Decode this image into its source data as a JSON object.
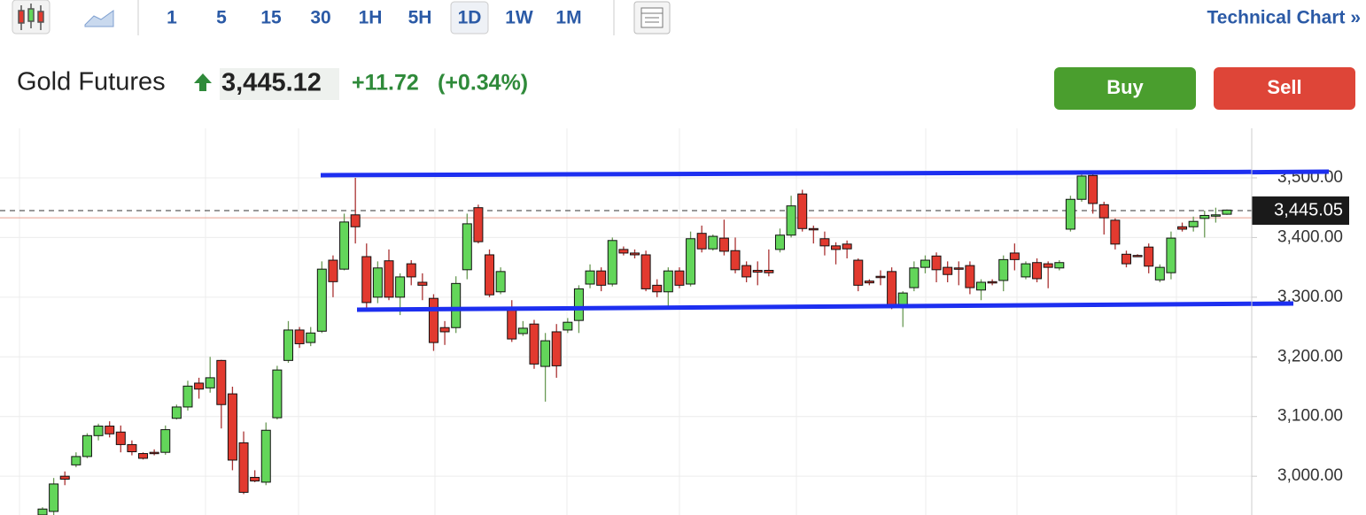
{
  "toolbar": {
    "intervals": [
      "1",
      "5",
      "15",
      "30",
      "1H",
      "5H",
      "1D",
      "1W",
      "1M"
    ],
    "selected_interval": "1D",
    "link": "Technical Chart »"
  },
  "quote": {
    "name": "Gold Futures",
    "price": "3,445.12",
    "change": "+11.72",
    "change_pct": "(+0.34%)"
  },
  "buttons": {
    "buy": "Buy",
    "sell": "Sell"
  },
  "chart_data": {
    "type": "candlestick",
    "up_color": "#63d65a",
    "down_color": "#e23a2f",
    "ylim": [
      2935,
      3583
    ],
    "yticks": [
      {
        "value": 3000,
        "label": "3,000.00"
      },
      {
        "value": 3100,
        "label": "3,100.00"
      },
      {
        "value": 3200,
        "label": "3,200.00"
      },
      {
        "value": 3300,
        "label": "3,300.00"
      },
      {
        "value": 3400,
        "label": "3,400.00"
      },
      {
        "value": 3500,
        "label": "3,500.00"
      }
    ],
    "grid": true,
    "last_price": {
      "value": 3445.05,
      "label": "3,445.05"
    },
    "previous_close": 3433,
    "candles": [
      [
        2935,
        2948,
        2930,
        2945
      ],
      [
        2941,
        2997,
        2935,
        2987
      ],
      [
        3000,
        3008,
        2985,
        2995
      ],
      [
        3019,
        3040,
        3015,
        3033
      ],
      [
        3033,
        3072,
        3030,
        3068
      ],
      [
        3068,
        3088,
        3060,
        3084
      ],
      [
        3084,
        3092,
        3065,
        3071
      ],
      [
        3074,
        3085,
        3040,
        3053
      ],
      [
        3053,
        3060,
        3035,
        3041
      ],
      [
        3038,
        3040,
        3028,
        3030
      ],
      [
        3040,
        3045,
        3035,
        3039
      ],
      [
        3040,
        3085,
        3036,
        3078
      ],
      [
        3097,
        3120,
        3095,
        3116
      ],
      [
        3116,
        3160,
        3110,
        3151
      ],
      [
        3156,
        3165,
        3130,
        3146
      ],
      [
        3148,
        3200,
        3140,
        3165
      ],
      [
        3194,
        3195,
        3080,
        3120
      ],
      [
        3138,
        3150,
        3010,
        3027
      ],
      [
        3056,
        3075,
        2970,
        2973
      ],
      [
        2998,
        3010,
        2990,
        2992
      ],
      [
        2990,
        3090,
        2985,
        3077
      ],
      [
        3098,
        3185,
        3095,
        3178
      ],
      [
        3194,
        3260,
        3190,
        3245
      ],
      [
        3245,
        3250,
        3215,
        3222
      ],
      [
        3224,
        3250,
        3218,
        3240
      ],
      [
        3243,
        3360,
        3240,
        3347
      ],
      [
        3362,
        3370,
        3300,
        3326
      ],
      [
        3347,
        3440,
        3345,
        3426
      ],
      [
        3438,
        3500,
        3390,
        3418
      ],
      [
        3368,
        3390,
        3280,
        3291
      ],
      [
        3300,
        3360,
        3290,
        3349
      ],
      [
        3361,
        3380,
        3295,
        3300
      ],
      [
        3300,
        3340,
        3270,
        3334
      ],
      [
        3356,
        3362,
        3320,
        3334
      ],
      [
        3325,
        3340,
        3295,
        3320
      ],
      [
        3298,
        3305,
        3210,
        3224
      ],
      [
        3249,
        3260,
        3220,
        3242
      ],
      [
        3249,
        3335,
        3240,
        3323
      ],
      [
        3346,
        3440,
        3330,
        3423
      ],
      [
        3450,
        3455,
        3390,
        3393
      ],
      [
        3371,
        3380,
        3300,
        3304
      ],
      [
        3309,
        3350,
        3305,
        3343
      ],
      [
        3279,
        3295,
        3225,
        3230
      ],
      [
        3239,
        3260,
        3235,
        3248
      ],
      [
        3255,
        3262,
        3180,
        3188
      ],
      [
        3184,
        3240,
        3125,
        3227
      ],
      [
        3242,
        3255,
        3165,
        3185
      ],
      [
        3245,
        3265,
        3240,
        3258
      ],
      [
        3261,
        3320,
        3240,
        3314
      ],
      [
        3322,
        3355,
        3315,
        3344
      ],
      [
        3344,
        3350,
        3310,
        3320
      ],
      [
        3322,
        3400,
        3318,
        3395
      ],
      [
        3380,
        3385,
        3370,
        3374
      ],
      [
        3374,
        3380,
        3365,
        3371
      ],
      [
        3371,
        3378,
        3310,
        3314
      ],
      [
        3320,
        3330,
        3300,
        3309
      ],
      [
        3309,
        3350,
        3280,
        3344
      ],
      [
        3344,
        3350,
        3315,
        3320
      ],
      [
        3322,
        3410,
        3318,
        3398
      ],
      [
        3407,
        3420,
        3375,
        3381
      ],
      [
        3381,
        3405,
        3378,
        3402
      ],
      [
        3399,
        3430,
        3370,
        3377
      ],
      [
        3378,
        3400,
        3340,
        3346
      ],
      [
        3353,
        3360,
        3325,
        3334
      ],
      [
        3345,
        3360,
        3320,
        3342
      ],
      [
        3345,
        3380,
        3335,
        3341
      ],
      [
        3380,
        3415,
        3375,
        3404
      ],
      [
        3404,
        3470,
        3400,
        3453
      ],
      [
        3473,
        3480,
        3410,
        3415
      ],
      [
        3415,
        3420,
        3390,
        3414
      ],
      [
        3398,
        3410,
        3370,
        3386
      ],
      [
        3386,
        3392,
        3355,
        3380
      ],
      [
        3389,
        3395,
        3365,
        3381
      ],
      [
        3362,
        3365,
        3310,
        3320
      ],
      [
        3327,
        3330,
        3320,
        3324
      ],
      [
        3335,
        3345,
        3320,
        3334
      ],
      [
        3343,
        3350,
        3280,
        3286
      ],
      [
        3286,
        3310,
        3250,
        3307
      ],
      [
        3316,
        3360,
        3310,
        3349
      ],
      [
        3350,
        3370,
        3340,
        3362
      ],
      [
        3369,
        3375,
        3325,
        3346
      ],
      [
        3350,
        3360,
        3325,
        3338
      ],
      [
        3349,
        3360,
        3320,
        3348
      ],
      [
        3353,
        3360,
        3305,
        3316
      ],
      [
        3312,
        3330,
        3295,
        3325
      ],
      [
        3326,
        3330,
        3320,
        3325
      ],
      [
        3328,
        3370,
        3310,
        3363
      ],
      [
        3374,
        3390,
        3345,
        3363
      ],
      [
        3334,
        3360,
        3330,
        3356
      ],
      [
        3358,
        3365,
        3325,
        3331
      ],
      [
        3356,
        3360,
        3315,
        3350
      ],
      [
        3349,
        3362,
        3345,
        3358
      ],
      [
        3414,
        3470,
        3410,
        3464
      ],
      [
        3464,
        3510,
        3460,
        3503
      ],
      [
        3504,
        3510,
        3440,
        3457
      ],
      [
        3455,
        3460,
        3405,
        3433
      ],
      [
        3429,
        3432,
        3380,
        3389
      ],
      [
        3372,
        3378,
        3350,
        3356
      ],
      [
        3370,
        3372,
        3368,
        3369
      ],
      [
        3384,
        3390,
        3340,
        3352
      ],
      [
        3329,
        3355,
        3325,
        3350
      ],
      [
        3341,
        3410,
        3330,
        3399
      ],
      [
        3418,
        3425,
        3410,
        3414
      ],
      [
        3418,
        3435,
        3410,
        3427
      ],
      [
        3432,
        3445,
        3400,
        3437
      ],
      [
        3437,
        3450,
        3425,
        3438
      ],
      [
        3439,
        3447,
        3438,
        3446
      ]
    ]
  }
}
